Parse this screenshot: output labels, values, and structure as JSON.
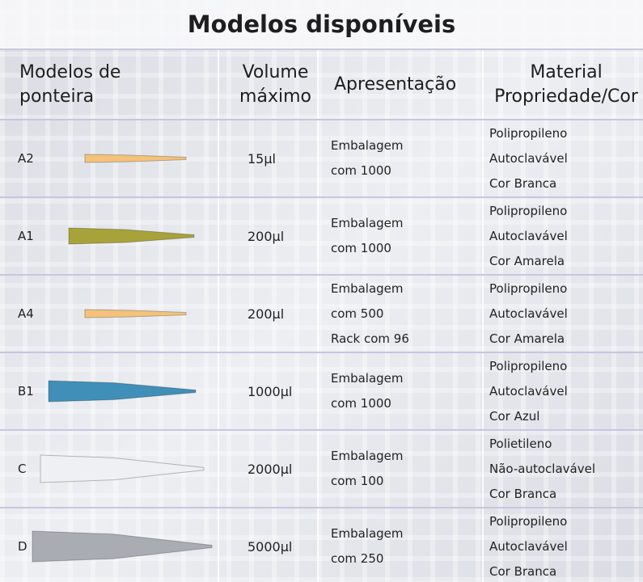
{
  "title": "Modelos disponíveis",
  "header": [
    [
      "Modelos de",
      "ponteira"
    ],
    [
      "Volume",
      "máximo"
    ],
    [
      "Apresentação"
    ],
    [
      "Material",
      "Propriedade/Cor"
    ]
  ],
  "rows": [
    {
      "model": "A2",
      "volume": "15µl",
      "presentation": [
        "Embalagem",
        "com 1000"
      ],
      "material": [
        "Polipropileno",
        "Autoclavável",
        "Cor Branca"
      ]
    },
    {
      "model": "A1",
      "volume": "200µl",
      "presentation": [
        "Embalagem",
        "com 1000"
      ],
      "material": [
        "Polipropileno",
        "Autoclavável",
        "Cor Amarela"
      ]
    },
    {
      "model": "A4",
      "volume": "200µl",
      "presentation": [
        "Embalagem",
        "com 500",
        "Rack com 96"
      ],
      "material": [
        "Polipropileno",
        "Autoclavável",
        "Cor Amarela"
      ]
    },
    {
      "model": "B1",
      "volume": "1000µl",
      "presentation": [
        "Embalagem",
        "com 1000"
      ],
      "material": [
        "Polipropileno",
        "Autoclavável",
        "Cor Azul"
      ]
    },
    {
      "model": "C",
      "volume": "2000µl",
      "presentation": [
        "Embalagem",
        "com 100"
      ],
      "material": [
        "Polietileno",
        "Não-autoclavável",
        "Cor Branca"
      ]
    },
    {
      "model": "D",
      "volume": "5000µl",
      "presentation": [
        "Embalagem",
        "com 250"
      ],
      "material": [
        "Polipropileno",
        "Autoclavável",
        "Cor Branca"
      ]
    }
  ]
}
